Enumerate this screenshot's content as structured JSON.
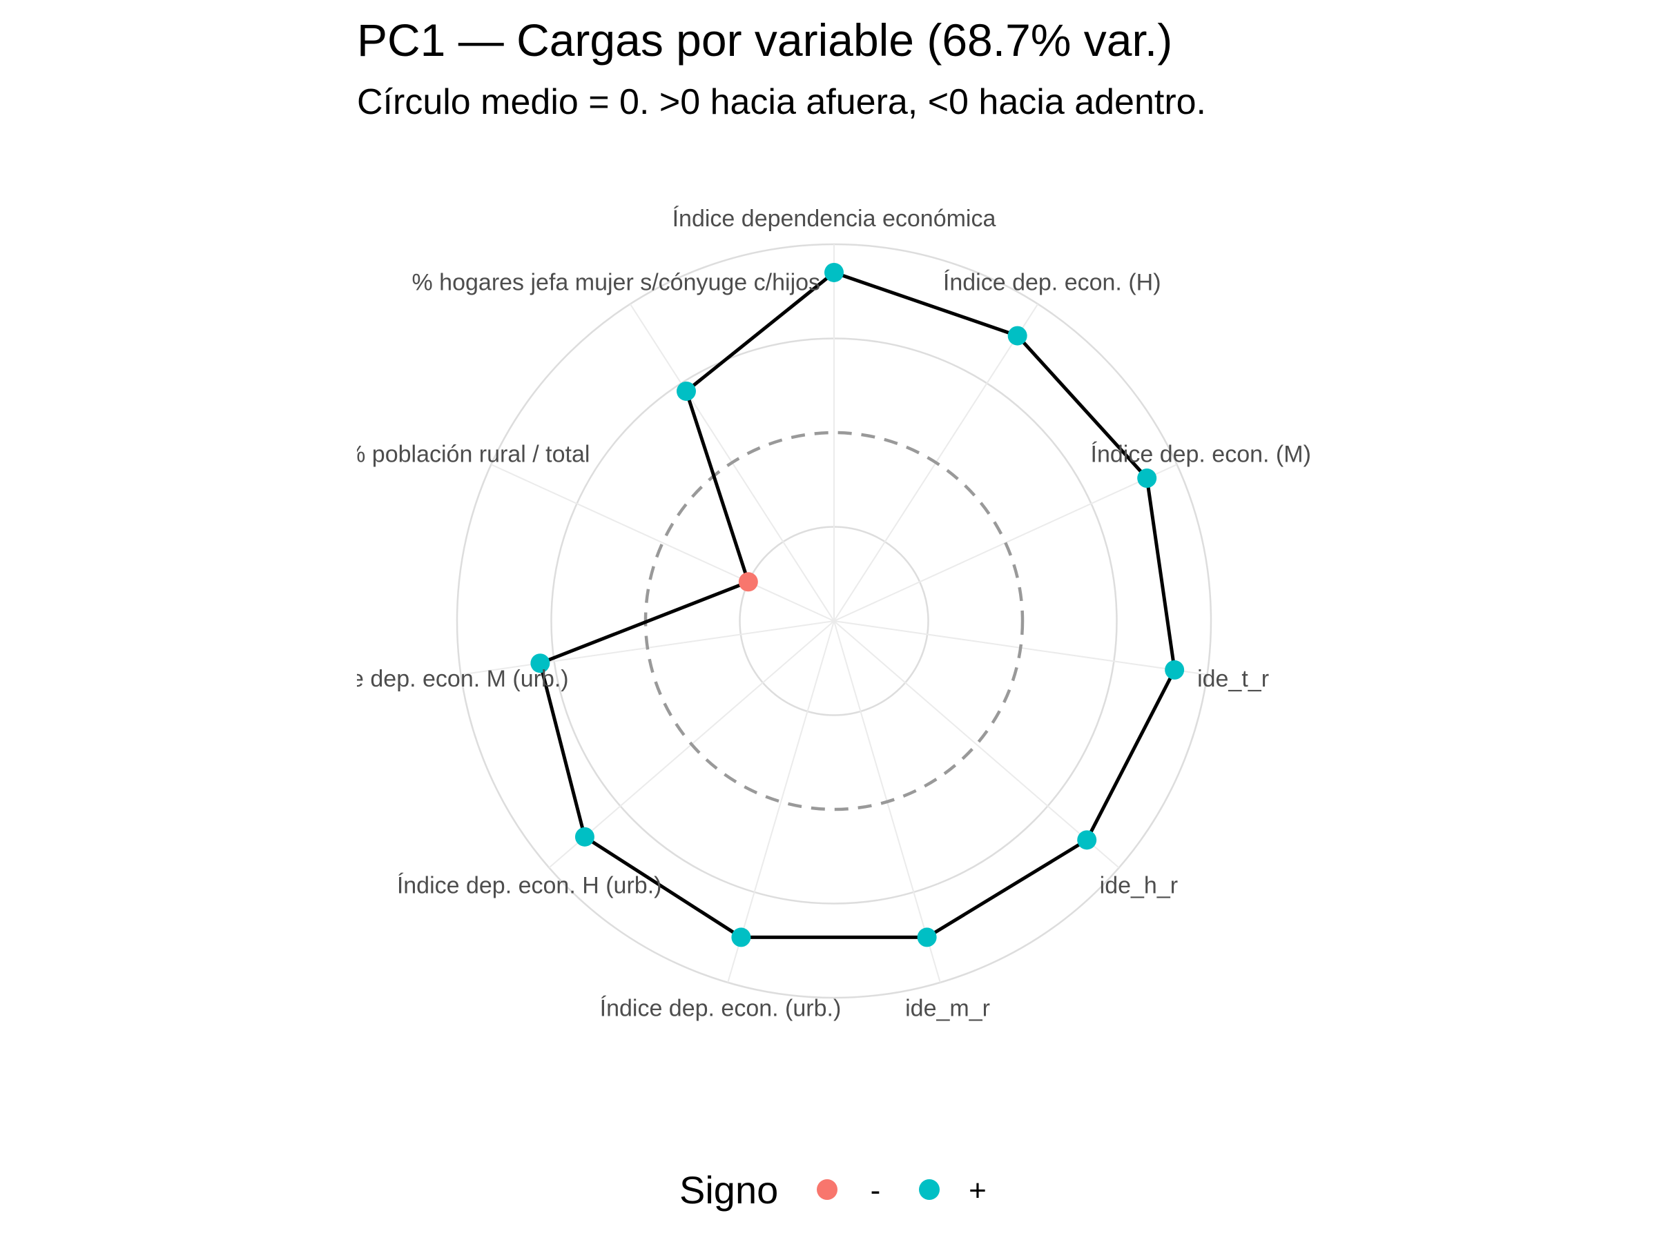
{
  "chart_data": {
    "type": "radar",
    "title": "PC1 — Cargas por variable (68.7% var.)",
    "subtitle": "Círculo medio = 0. >0 hacia afuera, <0 hacia adentro.",
    "axes": [
      "Índice dependencia económica",
      "Índice dep. econ. (H)",
      "Índice dep. econ. (M)",
      "ide_t_r",
      "ide_h_r",
      "ide_m_r",
      "Índice dep. econ. (urb.)",
      "Índice dep. econ. H (urb.)",
      "Índice dep. econ. M (urb.)",
      "% población rural / total",
      "% hogares jefa mujer s/cónyuge c/hijos"
    ],
    "values": [
      0.34,
      0.32,
      0.33,
      0.33,
      0.31,
      0.3,
      0.3,
      0.3,
      0.23,
      -0.2,
      0.18
    ],
    "signs": [
      "+",
      "+",
      "+",
      "+",
      "+",
      "+",
      "+",
      "+",
      "+",
      "-",
      "+"
    ],
    "rlim": [
      -0.4,
      0.4
    ],
    "grid_rings": [
      -0.2,
      0.0,
      0.2,
      0.4
    ],
    "zero_ring": 0.0,
    "grid": true,
    "legend": {
      "title": "Signo",
      "placement": "bottom",
      "items": [
        {
          "label": "-",
          "color": "#F8766D"
        },
        {
          "label": "+",
          "color": "#00BFC4"
        }
      ]
    }
  }
}
